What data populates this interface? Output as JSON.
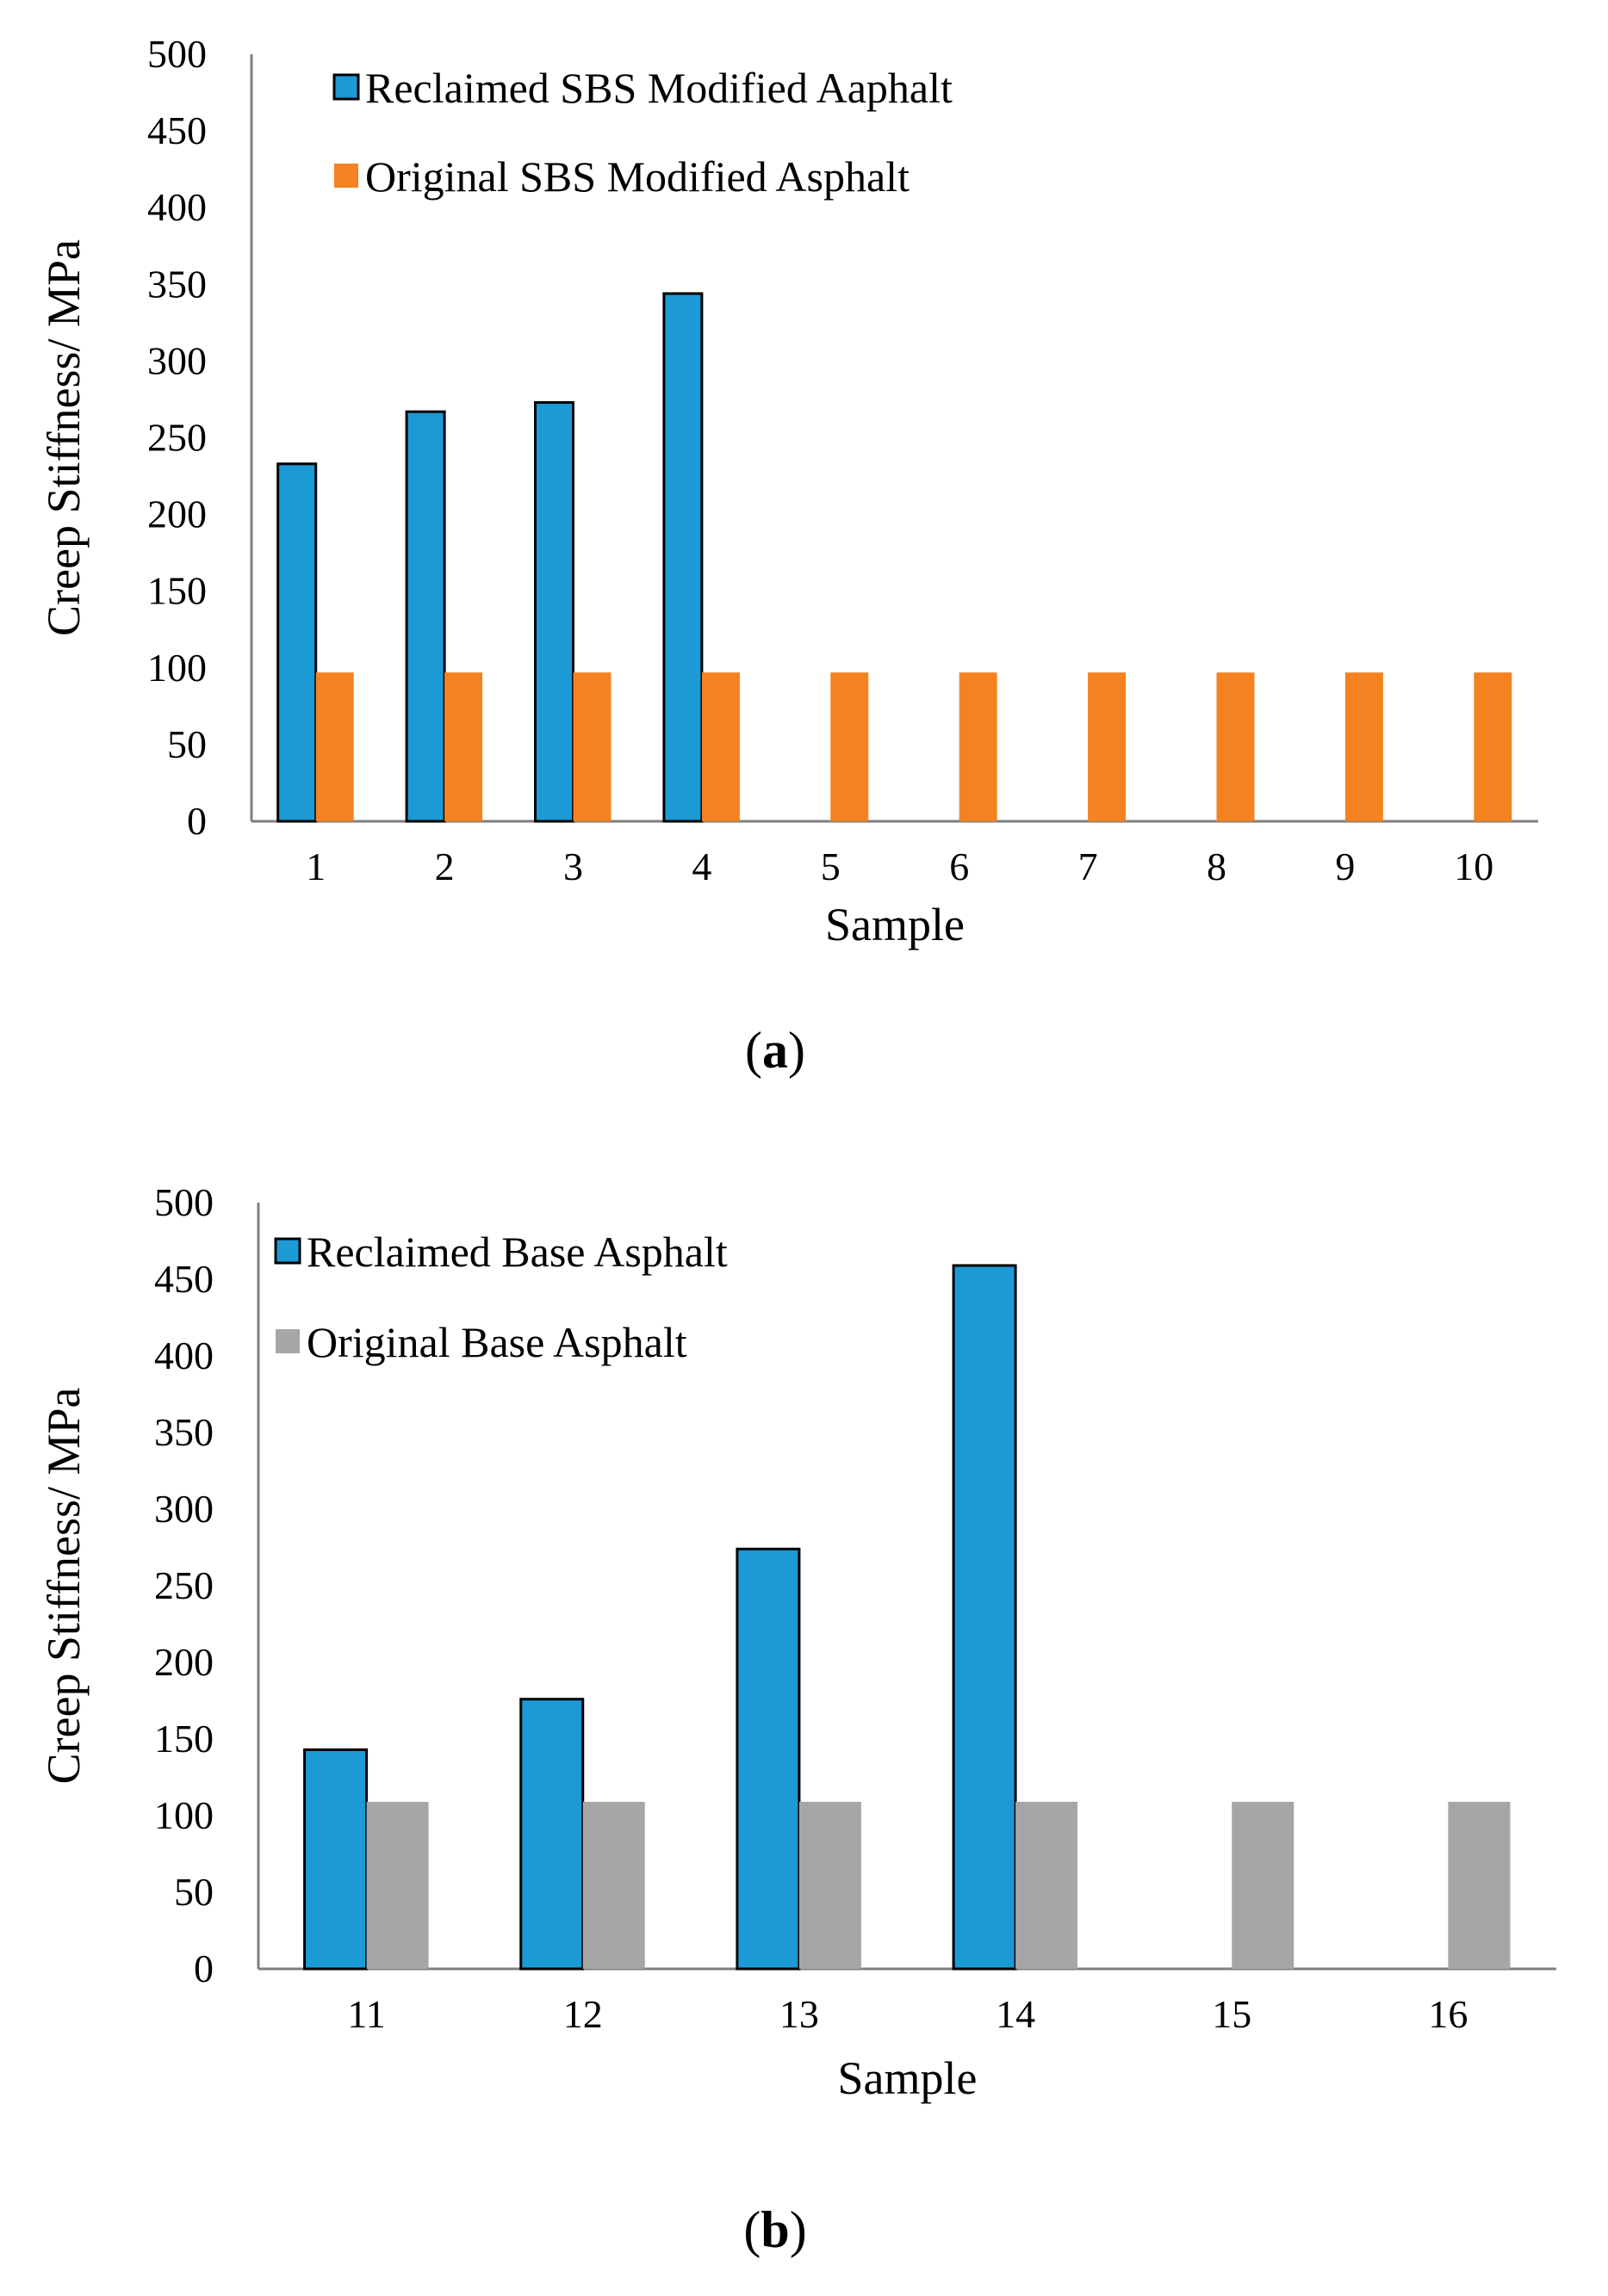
{
  "chart_data": [
    {
      "type": "bar",
      "panel_label": "a",
      "categories": [
        "1",
        "2",
        "3",
        "4",
        "5",
        "6",
        "7",
        "8",
        "9",
        "10"
      ],
      "series": [
        {
          "name": "Reclaimed SBS Modified Aaphalt",
          "color": "#1b9ad6",
          "edge": "#000000",
          "values": [
            233,
            267,
            273,
            344,
            null,
            null,
            null,
            null,
            null,
            null
          ]
        },
        {
          "name": "Original SBS Modified Asphalt",
          "color": "#f58220",
          "edge": null,
          "values": [
            97,
            97,
            97,
            97,
            97,
            97,
            97,
            97,
            97,
            97
          ]
        }
      ],
      "yticks": [
        0,
        50,
        100,
        150,
        200,
        250,
        300,
        350,
        400,
        450,
        500
      ],
      "ylim": [
        0,
        500
      ],
      "xlabel": "Sample",
      "ylabel": "Creep Stiffness/ MPa",
      "grid": false,
      "legend": "top-left"
    },
    {
      "type": "bar",
      "panel_label": "b",
      "categories": [
        "11",
        "12",
        "13",
        "14",
        "15",
        "16"
      ],
      "series": [
        {
          "name": "Reclaimed Base Asphalt",
          "color": "#1b9ad6",
          "edge": "#000000",
          "values": [
            143,
            176,
            274,
            459,
            null,
            null
          ]
        },
        {
          "name": "Original Base Asphalt",
          "color": "#a6a6a6",
          "edge": null,
          "values": [
            109,
            109,
            109,
            109,
            109,
            109
          ]
        }
      ],
      "yticks": [
        0,
        50,
        100,
        150,
        200,
        250,
        300,
        350,
        400,
        450,
        500
      ],
      "ylim": [
        0,
        500
      ],
      "xlabel": "Sample",
      "ylabel": "Creep Stiffness/  MPa",
      "grid": false,
      "legend": "top-left"
    }
  ]
}
